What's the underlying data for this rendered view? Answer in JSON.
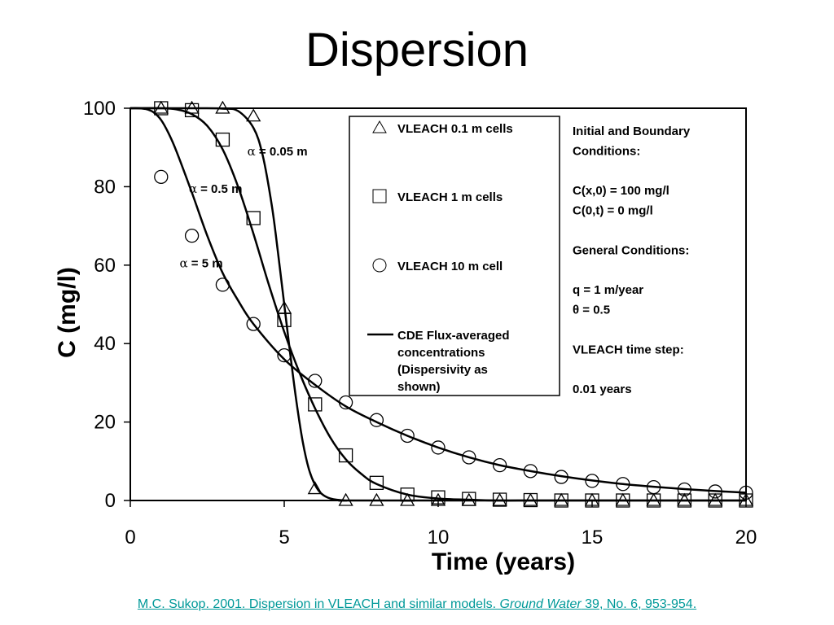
{
  "title": "Dispersion",
  "citation": {
    "pre": "M.C. Sukop. 2001. Dispersion in VLEACH and similar models. ",
    "journal": "Ground Water",
    "post": " 39, No. 6, 953-954."
  },
  "chart_data": {
    "type": "scatter",
    "xlabel": "Time (years)",
    "ylabel": "C (mg/l)",
    "xlim": [
      0,
      20
    ],
    "ylim": [
      0,
      100
    ],
    "xticks": [
      "0",
      "5",
      "10",
      "15",
      "20"
    ],
    "yticks": [
      "0",
      "20",
      "40",
      "60",
      "80",
      "100"
    ],
    "grid": false,
    "legend": {
      "placement": "top-center",
      "entries": [
        {
          "marker": "triangle",
          "text": "VLEACH 0.1 m cells"
        },
        {
          "marker": "square",
          "text": "VLEACH 1 m cells"
        },
        {
          "marker": "circle",
          "text": "VLEACH 10 m cell"
        },
        {
          "marker": "line",
          "lines": [
            "CDE Flux-averaged",
            "concentrations",
            "(Dispersivity as",
            "shown)"
          ]
        }
      ]
    },
    "annotations": [
      {
        "symbol": "α",
        "text": " = 0.05 m",
        "x": 3.8,
        "y": 89
      },
      {
        "symbol": "α",
        "text": " = 0.5 m",
        "x": 1.9,
        "y": 79.5
      },
      {
        "symbol": "α",
        "text": " = 5 m",
        "x": 1.6,
        "y": 60.5
      }
    ],
    "conditions": [
      "Initial and Boundary",
      "Conditions:",
      "",
      "C(x,0) = 100 mg/l",
      "C(0,t) = 0 mg/l",
      "",
      "General Conditions:",
      "",
      "q = 1 m/year",
      "θ = 0.5",
      "",
      "VLEACH time step:",
      "",
      "0.01 years"
    ],
    "series": [
      {
        "name": "VLEACH 0.1 m cells",
        "marker": "triangle",
        "x": [
          1,
          2,
          3,
          4,
          5,
          6,
          7,
          8,
          9,
          10,
          11,
          12,
          13,
          14,
          15,
          16,
          17,
          18,
          19,
          20
        ],
        "y": [
          100,
          100,
          100,
          98,
          49,
          3,
          0,
          0,
          0,
          0,
          0,
          0,
          0,
          0,
          0,
          0,
          0,
          0,
          0,
          0
        ]
      },
      {
        "name": "VLEACH 1 m cells",
        "marker": "square",
        "x": [
          1,
          2,
          3,
          4,
          5,
          6,
          7,
          8,
          9,
          10,
          11,
          12,
          13,
          14,
          15,
          16,
          17,
          18,
          19,
          20
        ],
        "y": [
          100,
          99.5,
          92,
          72,
          46,
          24.5,
          11.5,
          4.5,
          1.5,
          0.8,
          0.4,
          0.2,
          0.1,
          0,
          0,
          0,
          0,
          0,
          0,
          0
        ]
      },
      {
        "name": "VLEACH 10 m cell",
        "marker": "circle",
        "x": [
          1,
          2,
          3,
          4,
          5,
          6,
          7,
          8,
          9,
          10,
          11,
          12,
          13,
          14,
          15,
          16,
          17,
          18,
          19,
          20
        ],
        "y": [
          82.5,
          67.5,
          55,
          45,
          37,
          30.5,
          25,
          20.5,
          16.5,
          13.5,
          11,
          9,
          7.5,
          6,
          5,
          4.2,
          3.4,
          2.8,
          2.3,
          2
        ]
      },
      {
        "name": "α = 0.05 m",
        "marker": "line",
        "x": [
          0,
          2,
          3,
          3.5,
          4,
          4.3,
          4.6,
          4.8,
          5,
          5.2,
          5.4,
          5.6,
          5.8,
          6,
          6.2,
          6.5,
          7,
          8,
          20
        ],
        "y": [
          100,
          100,
          99.9,
          99.3,
          95,
          88,
          75,
          63,
          50,
          37,
          25,
          15,
          8,
          4,
          1.8,
          0.5,
          0,
          0,
          0
        ]
      },
      {
        "name": "α = 0.5 m",
        "marker": "line",
        "x": [
          0,
          1,
          1.5,
          2,
          2.5,
          3,
          3.5,
          4,
          4.5,
          5,
          5.5,
          6,
          6.5,
          7,
          7.5,
          8,
          9,
          10,
          11,
          12,
          14,
          20
        ],
        "y": [
          100,
          100,
          99.7,
          98.5,
          95.5,
          89.5,
          80,
          68,
          55,
          43,
          32.5,
          23.5,
          16,
          10.5,
          6.8,
          4.2,
          1.5,
          0.5,
          0.2,
          0,
          0,
          0
        ]
      },
      {
        "name": "α = 5 m",
        "marker": "line",
        "x": [
          0,
          0.25,
          0.5,
          0.75,
          1,
          1.25,
          1.5,
          2,
          2.5,
          3,
          3.5,
          4,
          5,
          6,
          7,
          8,
          9,
          10,
          11,
          12,
          13,
          14,
          15,
          16,
          17,
          18,
          19,
          20
        ],
        "y": [
          100,
          100,
          99.8,
          99,
          97,
          93.5,
          89,
          78.5,
          67.5,
          58,
          51,
          45,
          36,
          29.5,
          24,
          20,
          16.5,
          13.5,
          11,
          9,
          7.5,
          6.2,
          5.1,
          4.2,
          3.5,
          2.9,
          2.4,
          2
        ]
      }
    ]
  }
}
